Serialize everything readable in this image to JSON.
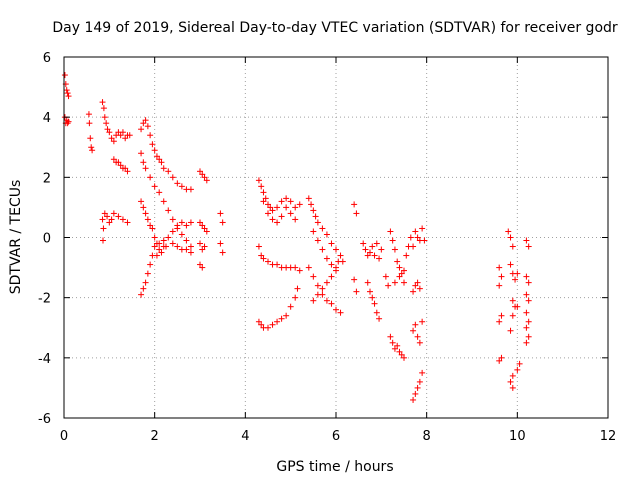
{
  "chart_data": {
    "type": "scatter",
    "title": "Day 149 of 2019, Sidereal Day-to-day VTEC variation (SDTVAR) for receiver godr",
    "xlabel": "GPS time / hours",
    "ylabel": "SDTVAR / TECUs",
    "xlim": [
      0,
      12
    ],
    "ylim": [
      -6,
      6
    ],
    "xticks": [
      0,
      2,
      4,
      6,
      8,
      10,
      12
    ],
    "yticks": [
      -6,
      -4,
      -2,
      0,
      2,
      4,
      6
    ],
    "grid": true,
    "marker": "+",
    "color": "#ff0000",
    "series": [
      {
        "name": "SDTVAR",
        "points": [
          [
            0.02,
            5.4
          ],
          [
            0.04,
            5.1
          ],
          [
            0.06,
            4.9
          ],
          [
            0.08,
            4.8
          ],
          [
            0.1,
            4.7
          ],
          [
            0.02,
            4.0
          ],
          [
            0.04,
            3.8
          ],
          [
            0.06,
            3.9
          ],
          [
            0.08,
            3.8
          ],
          [
            0.1,
            3.85
          ],
          [
            0.55,
            4.1
          ],
          [
            0.56,
            3.8
          ],
          [
            0.58,
            3.3
          ],
          [
            0.6,
            3.0
          ],
          [
            0.62,
            2.9
          ],
          [
            0.85,
            4.5
          ],
          [
            0.88,
            4.3
          ],
          [
            0.9,
            4.0
          ],
          [
            0.93,
            3.8
          ],
          [
            0.96,
            3.6
          ],
          [
            1.0,
            3.5
          ],
          [
            1.05,
            3.3
          ],
          [
            1.1,
            3.2
          ],
          [
            1.15,
            3.4
          ],
          [
            1.2,
            3.5
          ],
          [
            1.25,
            3.4
          ],
          [
            1.3,
            3.5
          ],
          [
            1.35,
            3.3
          ],
          [
            1.4,
            3.4
          ],
          [
            1.45,
            3.4
          ],
          [
            1.1,
            2.6
          ],
          [
            1.15,
            2.5
          ],
          [
            1.2,
            2.5
          ],
          [
            1.25,
            2.4
          ],
          [
            1.3,
            2.3
          ],
          [
            1.35,
            2.3
          ],
          [
            1.4,
            2.2
          ],
          [
            0.85,
            0.6
          ],
          [
            0.9,
            0.8
          ],
          [
            0.95,
            0.7
          ],
          [
            1.0,
            0.5
          ],
          [
            1.05,
            0.6
          ],
          [
            1.1,
            0.8
          ],
          [
            1.2,
            0.7
          ],
          [
            1.3,
            0.6
          ],
          [
            1.4,
            0.5
          ],
          [
            0.87,
            0.3
          ],
          [
            0.86,
            -0.1
          ],
          [
            1.7,
            3.6
          ],
          [
            1.75,
            3.8
          ],
          [
            1.8,
            3.9
          ],
          [
            1.85,
            3.7
          ],
          [
            1.9,
            3.4
          ],
          [
            1.95,
            3.1
          ],
          [
            2.0,
            2.9
          ],
          [
            2.05,
            2.7
          ],
          [
            2.1,
            2.6
          ],
          [
            2.15,
            2.5
          ],
          [
            2.2,
            2.3
          ],
          [
            2.3,
            2.2
          ],
          [
            2.4,
            2.0
          ],
          [
            2.5,
            1.8
          ],
          [
            2.6,
            1.7
          ],
          [
            2.7,
            1.6
          ],
          [
            2.8,
            1.6
          ],
          [
            1.7,
            2.8
          ],
          [
            1.75,
            2.5
          ],
          [
            1.8,
            2.3
          ],
          [
            1.9,
            2.0
          ],
          [
            2.0,
            1.7
          ],
          [
            2.1,
            1.5
          ],
          [
            2.2,
            1.2
          ],
          [
            2.3,
            0.9
          ],
          [
            2.4,
            0.6
          ],
          [
            2.5,
            0.3
          ],
          [
            2.6,
            0.1
          ],
          [
            2.7,
            -0.1
          ],
          [
            2.8,
            -0.3
          ],
          [
            1.7,
            1.2
          ],
          [
            1.75,
            1.0
          ],
          [
            1.8,
            0.8
          ],
          [
            1.85,
            0.6
          ],
          [
            1.9,
            0.4
          ],
          [
            1.95,
            0.3
          ],
          [
            2.0,
            0.0
          ],
          [
            2.05,
            -0.2
          ],
          [
            2.1,
            -0.4
          ],
          [
            2.2,
            -0.3
          ],
          [
            2.3,
            0.0
          ],
          [
            2.4,
            0.2
          ],
          [
            2.5,
            0.4
          ],
          [
            2.6,
            0.5
          ],
          [
            2.7,
            0.4
          ],
          [
            2.8,
            0.5
          ],
          [
            1.7,
            -1.9
          ],
          [
            1.75,
            -1.7
          ],
          [
            1.8,
            -1.5
          ],
          [
            1.85,
            -1.2
          ],
          [
            1.9,
            -0.9
          ],
          [
            1.95,
            -0.6
          ],
          [
            2.0,
            -0.3
          ],
          [
            2.05,
            -0.6
          ],
          [
            2.1,
            -0.2
          ],
          [
            2.15,
            -0.5
          ],
          [
            2.2,
            -0.1
          ],
          [
            2.25,
            -0.3
          ],
          [
            2.4,
            -0.2
          ],
          [
            2.5,
            -0.3
          ],
          [
            2.6,
            -0.4
          ],
          [
            2.7,
            -0.4
          ],
          [
            2.8,
            -0.5
          ],
          [
            3.0,
            2.2
          ],
          [
            3.05,
            2.1
          ],
          [
            3.1,
            2.0
          ],
          [
            3.15,
            1.9
          ],
          [
            3.0,
            0.5
          ],
          [
            3.05,
            0.4
          ],
          [
            3.1,
            0.3
          ],
          [
            3.15,
            0.2
          ],
          [
            3.0,
            -0.2
          ],
          [
            3.05,
            -0.4
          ],
          [
            3.1,
            -0.3
          ],
          [
            3.0,
            -0.9
          ],
          [
            3.05,
            -1.0
          ],
          [
            3.45,
            0.8
          ],
          [
            3.5,
            0.5
          ],
          [
            3.45,
            -0.2
          ],
          [
            3.5,
            -0.5
          ],
          [
            4.3,
            1.9
          ],
          [
            4.35,
            1.7
          ],
          [
            4.4,
            1.5
          ],
          [
            4.45,
            1.3
          ],
          [
            4.5,
            1.1
          ],
          [
            4.55,
            1.0
          ],
          [
            4.6,
            0.9
          ],
          [
            4.7,
            1.0
          ],
          [
            4.8,
            1.2
          ],
          [
            4.9,
            1.3
          ],
          [
            5.0,
            1.2
          ],
          [
            5.1,
            1.0
          ],
          [
            5.2,
            1.1
          ],
          [
            4.4,
            1.2
          ],
          [
            4.5,
            0.8
          ],
          [
            4.6,
            0.6
          ],
          [
            4.7,
            0.5
          ],
          [
            4.8,
            0.7
          ],
          [
            4.9,
            1.0
          ],
          [
            5.0,
            0.8
          ],
          [
            5.1,
            0.6
          ],
          [
            4.3,
            -0.3
          ],
          [
            4.35,
            -0.6
          ],
          [
            4.4,
            -0.7
          ],
          [
            4.5,
            -0.8
          ],
          [
            4.6,
            -0.9
          ],
          [
            4.7,
            -0.9
          ],
          [
            4.8,
            -1.0
          ],
          [
            4.9,
            -1.0
          ],
          [
            5.0,
            -1.0
          ],
          [
            5.1,
            -1.0
          ],
          [
            5.2,
            -1.1
          ],
          [
            4.3,
            -2.8
          ],
          [
            4.35,
            -2.9
          ],
          [
            4.4,
            -3.0
          ],
          [
            4.5,
            -3.0
          ],
          [
            4.6,
            -2.9
          ],
          [
            4.7,
            -2.8
          ],
          [
            4.8,
            -2.7
          ],
          [
            4.9,
            -2.6
          ],
          [
            5.0,
            -2.3
          ],
          [
            5.1,
            -2.0
          ],
          [
            5.15,
            -1.7
          ],
          [
            5.4,
            1.3
          ],
          [
            5.45,
            1.1
          ],
          [
            5.5,
            0.9
          ],
          [
            5.55,
            0.7
          ],
          [
            5.6,
            0.5
          ],
          [
            5.7,
            0.3
          ],
          [
            5.8,
            0.1
          ],
          [
            5.9,
            -0.2
          ],
          [
            6.0,
            -0.4
          ],
          [
            6.1,
            -0.6
          ],
          [
            6.15,
            -0.8
          ],
          [
            5.5,
            0.2
          ],
          [
            5.6,
            -0.1
          ],
          [
            5.7,
            -0.4
          ],
          [
            5.8,
            -0.7
          ],
          [
            5.9,
            -0.9
          ],
          [
            6.0,
            -1.1
          ],
          [
            5.4,
            -1.0
          ],
          [
            5.5,
            -1.3
          ],
          [
            5.6,
            -1.6
          ],
          [
            5.7,
            -1.9
          ],
          [
            5.8,
            -2.1
          ],
          [
            5.9,
            -2.2
          ],
          [
            6.0,
            -2.4
          ],
          [
            6.1,
            -2.5
          ],
          [
            5.5,
            -2.1
          ],
          [
            5.6,
            -1.9
          ],
          [
            5.7,
            -1.7
          ],
          [
            5.8,
            -1.5
          ],
          [
            5.9,
            -1.3
          ],
          [
            6.0,
            -1.0
          ],
          [
            6.05,
            -0.8
          ],
          [
            6.4,
            1.1
          ],
          [
            6.45,
            0.8
          ],
          [
            6.4,
            -1.4
          ],
          [
            6.45,
            -1.8
          ],
          [
            6.6,
            -0.2
          ],
          [
            6.65,
            -0.4
          ],
          [
            6.7,
            -0.6
          ],
          [
            6.75,
            -0.5
          ],
          [
            6.8,
            -0.3
          ],
          [
            6.85,
            -0.6
          ],
          [
            6.9,
            -0.2
          ],
          [
            6.95,
            -0.7
          ],
          [
            7.0,
            -0.4
          ],
          [
            6.7,
            -1.5
          ],
          [
            6.75,
            -1.8
          ],
          [
            6.8,
            -2.0
          ],
          [
            6.85,
            -2.2
          ],
          [
            6.9,
            -2.5
          ],
          [
            6.95,
            -2.7
          ],
          [
            7.1,
            -1.3
          ],
          [
            7.15,
            -1.6
          ],
          [
            7.2,
            0.2
          ],
          [
            7.25,
            -0.1
          ],
          [
            7.3,
            -0.4
          ],
          [
            7.35,
            -0.8
          ],
          [
            7.4,
            -1.0
          ],
          [
            7.45,
            -1.2
          ],
          [
            7.5,
            -1.1
          ],
          [
            7.55,
            -0.6
          ],
          [
            7.6,
            -0.3
          ],
          [
            7.65,
            0.0
          ],
          [
            7.3,
            -1.5
          ],
          [
            7.4,
            -1.3
          ],
          [
            7.5,
            -1.5
          ],
          [
            7.2,
            -3.3
          ],
          [
            7.25,
            -3.5
          ],
          [
            7.3,
            -3.7
          ],
          [
            7.35,
            -3.6
          ],
          [
            7.4,
            -3.8
          ],
          [
            7.45,
            -3.9
          ],
          [
            7.5,
            -4.0
          ],
          [
            7.7,
            -0.3
          ],
          [
            7.75,
            0.2
          ],
          [
            7.8,
            0.0
          ],
          [
            7.85,
            -0.1
          ],
          [
            7.9,
            0.3
          ],
          [
            7.95,
            -0.1
          ],
          [
            7.7,
            -1.8
          ],
          [
            7.75,
            -1.6
          ],
          [
            7.8,
            -1.5
          ],
          [
            7.85,
            -1.7
          ],
          [
            7.7,
            -3.1
          ],
          [
            7.75,
            -2.9
          ],
          [
            7.8,
            -3.3
          ],
          [
            7.85,
            -3.5
          ],
          [
            7.9,
            -2.8
          ],
          [
            7.7,
            -5.4
          ],
          [
            7.75,
            -5.2
          ],
          [
            7.8,
            -5.0
          ],
          [
            7.85,
            -4.8
          ],
          [
            7.9,
            -4.5
          ],
          [
            9.6,
            -1.0
          ],
          [
            9.65,
            -1.3
          ],
          [
            9.6,
            -1.6
          ],
          [
            9.65,
            -2.6
          ],
          [
            9.6,
            -2.8
          ],
          [
            9.65,
            -4.0
          ],
          [
            9.6,
            -4.1
          ],
          [
            9.8,
            0.2
          ],
          [
            9.85,
            0.0
          ],
          [
            9.9,
            -0.3
          ],
          [
            9.85,
            -0.9
          ],
          [
            9.9,
            -1.2
          ],
          [
            9.95,
            -1.4
          ],
          [
            10.0,
            -1.2
          ],
          [
            9.9,
            -2.1
          ],
          [
            9.95,
            -2.3
          ],
          [
            9.9,
            -2.6
          ],
          [
            9.85,
            -3.1
          ],
          [
            10.0,
            -2.3
          ],
          [
            9.9,
            -4.6
          ],
          [
            9.85,
            -4.8
          ],
          [
            9.9,
            -5.0
          ],
          [
            10.0,
            -4.4
          ],
          [
            10.05,
            -4.2
          ],
          [
            10.2,
            -0.1
          ],
          [
            10.25,
            -0.3
          ],
          [
            10.2,
            -1.3
          ],
          [
            10.25,
            -1.5
          ],
          [
            10.2,
            -1.9
          ],
          [
            10.25,
            -2.1
          ],
          [
            10.2,
            -2.5
          ],
          [
            10.25,
            -2.8
          ],
          [
            10.2,
            -3.0
          ],
          [
            10.25,
            -3.3
          ],
          [
            10.2,
            -3.5
          ]
        ]
      }
    ]
  }
}
